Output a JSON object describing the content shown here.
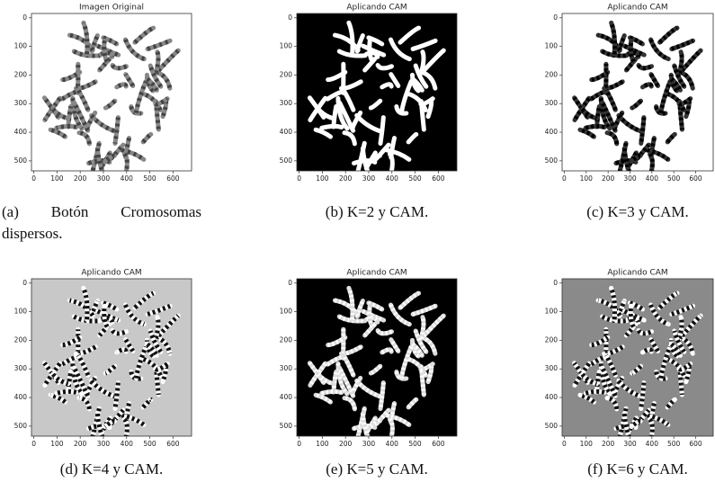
{
  "axes": {
    "xticks": [
      0,
      100,
      200,
      300,
      400,
      500,
      600
    ],
    "yticks": [
      0,
      100,
      200,
      300,
      400,
      500
    ]
  },
  "panels": [
    {
      "title": "Imagen Original",
      "caption": "(a) Botón Cromosomas dispersos."
    },
    {
      "title": "Aplicando CAM",
      "caption": "(b) K=2 y CAM."
    },
    {
      "title": "Aplicando CAM",
      "caption": "(c) K=3 y CAM."
    },
    {
      "title": "Aplicando CAM",
      "caption": "(d) K=4 y CAM."
    },
    {
      "title": "Aplicando CAM",
      "caption": "(e) K=5 y CAM."
    },
    {
      "title": "Aplicando CAM",
      "caption": "(f) K=6 y CAM."
    }
  ]
}
